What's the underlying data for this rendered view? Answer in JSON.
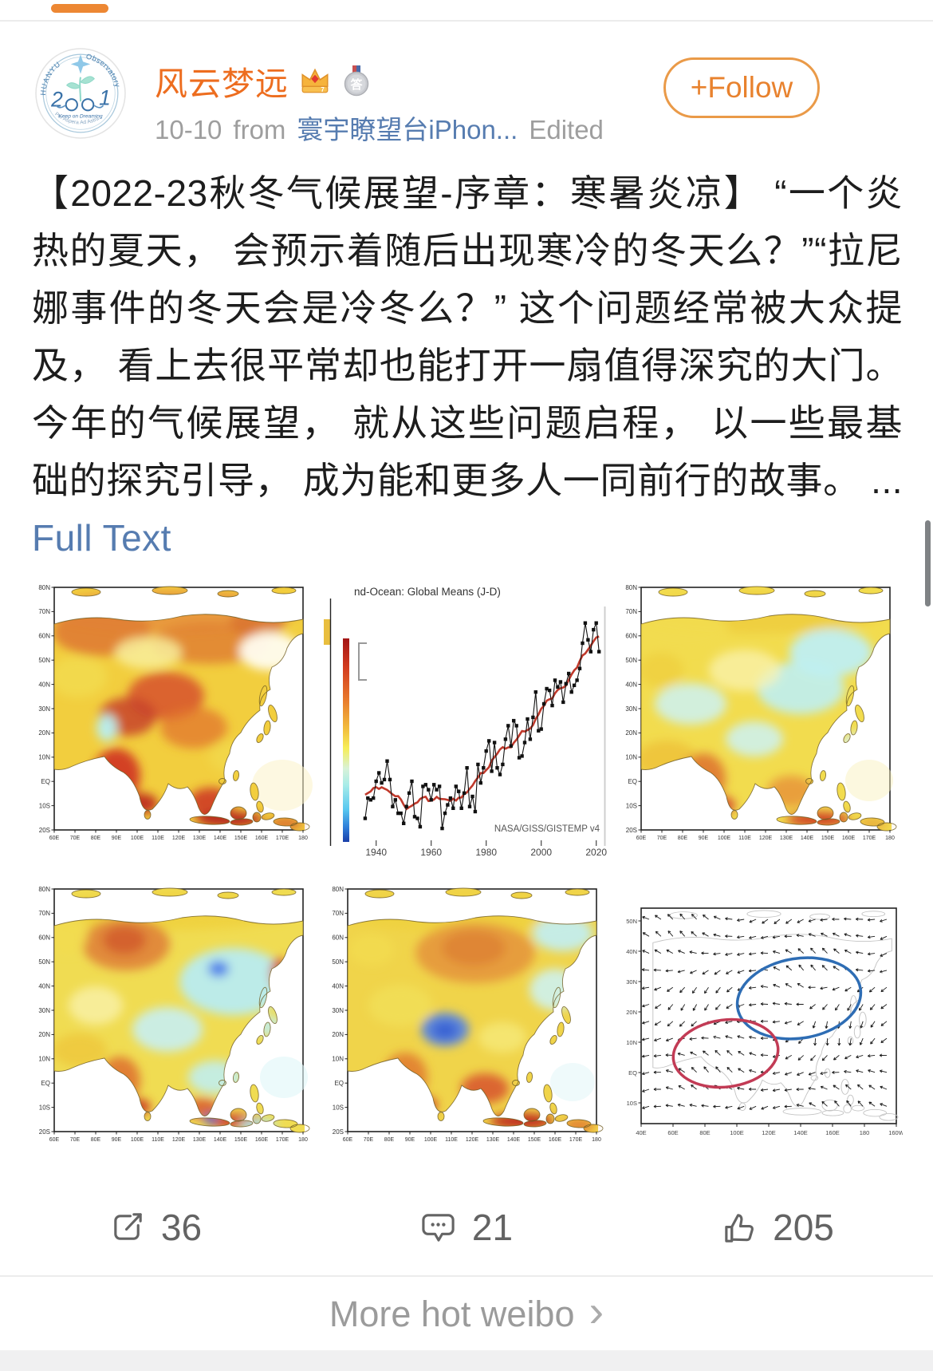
{
  "header": {
    "tab_accent_color": "#ED8733",
    "username": "风云梦远",
    "badge_answer_text": "答",
    "date": "10-10",
    "from_label": "from",
    "source": "寰宇瞭望台iPhon...",
    "edited_label": "Edited",
    "follow_label": "+Follow",
    "name_color": "#ED6D1F",
    "follow_color": "#E8822E",
    "avatar": {
      "arc_top_left": "HUANYU",
      "arc_top_right": "Observatory",
      "digit_left": "2",
      "digit_right": "1",
      "motto": "Keep on Dreaming",
      "arc_bottom": "Per Aspera Ad Astra"
    }
  },
  "post": {
    "text": "【2022-23秋冬气候展望-序章：寒暑炎凉】 “一个炎热的夏天， 会预示着随后出现寒冷的冬天么？”“拉尼娜事件的冬天会是冷冬么？” 这个问题经常被大众提及， 看上去很平常却也能打开一扇值得深究的大门。今年的气候展望， 就从这些问题启程， 以一些最基础的探究引导， 成为能和更多人一同前行的故事。",
    "ellipsis": " ...",
    "full_text_label": "Full Text",
    "link_color": "#567CB0"
  },
  "images": {
    "anomaly_maps": {
      "lat_labels": [
        "80N",
        "70N",
        "60N",
        "50N",
        "40N",
        "30N",
        "20N",
        "10N",
        "EQ",
        "10S",
        "20S"
      ],
      "lon_labels": [
        "60E",
        "70E",
        "80E",
        "90E",
        "100E",
        "110E",
        "120E",
        "130E",
        "140E",
        "150E",
        "160E",
        "170E",
        "180"
      ]
    },
    "vector_map": {
      "lat_labels": [
        "50N",
        "40N",
        "30N",
        "20N",
        "10N",
        "EQ",
        "10S"
      ],
      "lon_labels": [
        "40E",
        "60E",
        "80E",
        "100E",
        "120E",
        "140E",
        "160E",
        "180",
        "160W"
      ],
      "blue_ellipse_color": "#2E6DB4",
      "red_ellipse_color": "#C23B55"
    }
  },
  "chart_data": {
    "type": "line",
    "title": "nd-Ocean: Global Means (J-D)",
    "attribution": "NASA/GISS/GISTEMP v4",
    "xlabel": "",
    "ylabel": "",
    "start_year": 1936,
    "values": [
      -0.14,
      -0.02,
      -0.03,
      -0.02,
      0.08,
      0.13,
      0.07,
      0.09,
      0.2,
      0.09,
      -0.07,
      -0.03,
      -0.11,
      -0.11,
      -0.17,
      -0.07,
      0.01,
      0.08,
      -0.13,
      -0.14,
      -0.19,
      0.05,
      0.06,
      0.03,
      -0.03,
      0.06,
      0.03,
      0.05,
      -0.2,
      -0.11,
      -0.06,
      -0.02,
      -0.08,
      0.05,
      0.02,
      -0.08,
      0.01,
      0.16,
      -0.07,
      -0.01,
      -0.1,
      0.18,
      0.07,
      0.16,
      0.26,
      0.32,
      0.14,
      0.31,
      0.16,
      0.12,
      0.18,
      0.33,
      0.41,
      0.29,
      0.44,
      0.41,
      0.22,
      0.23,
      0.31,
      0.45,
      0.33,
      0.46,
      0.61,
      0.38,
      0.39,
      0.54,
      0.63,
      0.62,
      0.53,
      0.68,
      0.64,
      0.67,
      0.55,
      0.66,
      0.72,
      0.61,
      0.65,
      0.68,
      0.75,
      0.9,
      1.02,
      0.92,
      0.85,
      0.98,
      1.02,
      0.85
    ],
    "xticks": [
      1940,
      1960,
      1980,
      2000,
      2020
    ],
    "ylim": [
      -0.3,
      1.1
    ],
    "series_color": "#111111",
    "trend_color": "#C0392B",
    "legend": []
  },
  "actions": {
    "share_count": "36",
    "comment_count": "21",
    "like_count": "205"
  },
  "footer": {
    "more_label": "More hot weibo",
    "chevron": "›"
  }
}
